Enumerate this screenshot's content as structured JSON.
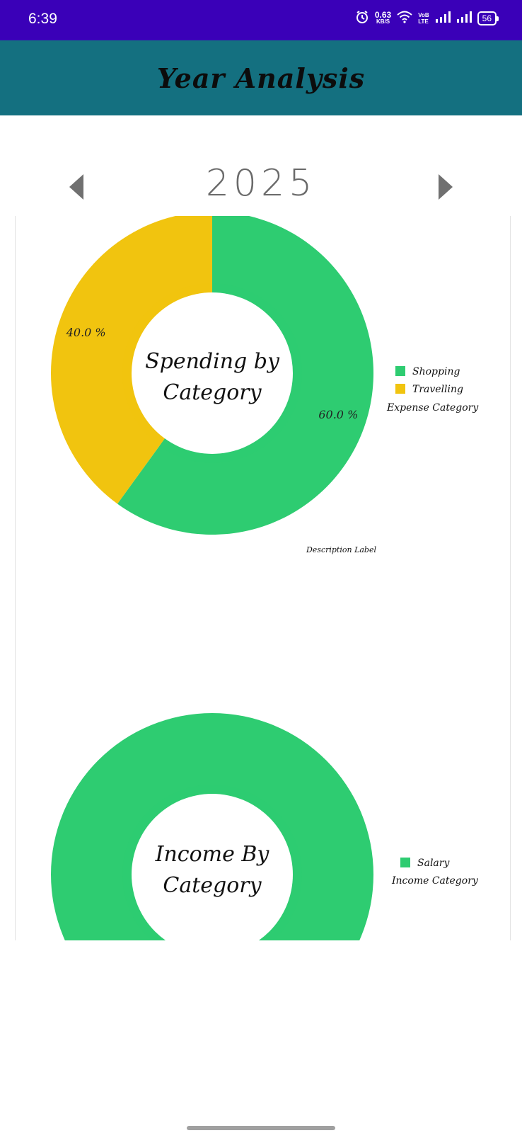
{
  "status_bar": {
    "time": "6:39",
    "speed_value": "0.63",
    "speed_unit": "KB/S",
    "volte_top": "VoB",
    "volte_bottom": "LTE",
    "battery": "56"
  },
  "header": {
    "title": "Year Analysis"
  },
  "year_nav": {
    "year": "2025"
  },
  "colors": {
    "status": "#3a00b8",
    "app_bar": "#147080",
    "green": "#2ecc71",
    "yellow": "#f1c40f"
  },
  "chart_data": [
    {
      "type": "pie",
      "center_text_line1": "Spending by",
      "center_text_line2": "Category",
      "categories": [
        "Shopping",
        "Travelling"
      ],
      "values": [
        60.0,
        40.0
      ],
      "value_labels": [
        "60.0 %",
        "40.0 %"
      ],
      "colors": [
        "#2ecc71",
        "#f1c40f"
      ],
      "legend_title": "Expense Category",
      "description": "Description Label",
      "legend_placement": "right"
    },
    {
      "type": "pie",
      "center_text_line1": "Income By",
      "center_text_line2": "Category",
      "categories": [
        "Salary"
      ],
      "values": [
        100.0
      ],
      "colors": [
        "#2ecc71"
      ],
      "legend_title": "Income Category",
      "legend_placement": "right"
    }
  ]
}
